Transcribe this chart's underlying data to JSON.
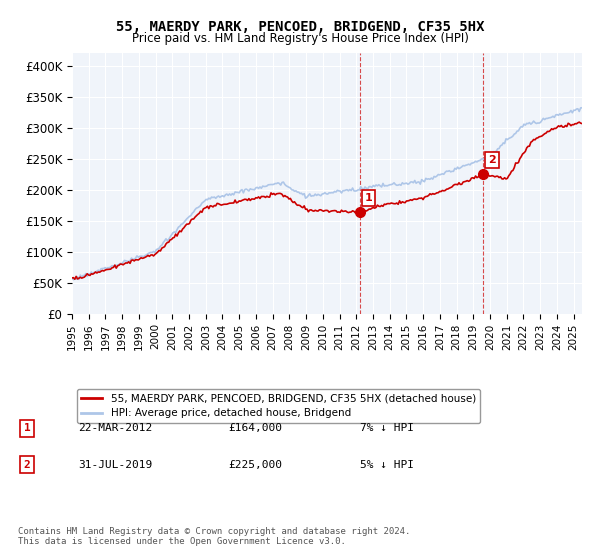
{
  "title": "55, MAERDY PARK, PENCOED, BRIDGEND, CF35 5HX",
  "subtitle": "Price paid vs. HM Land Registry's House Price Index (HPI)",
  "ylabel_ticks": [
    "£0",
    "£50K",
    "£100K",
    "£150K",
    "£200K",
    "£250K",
    "£300K",
    "£350K",
    "£400K"
  ],
  "ytick_values": [
    0,
    50000,
    100000,
    150000,
    200000,
    250000,
    300000,
    350000,
    400000
  ],
  "ylim": [
    0,
    420000
  ],
  "xlim_start": 1995.0,
  "xlim_end": 2025.5,
  "hpi_color": "#aec6e8",
  "price_color": "#cc0000",
  "sale1": {
    "date_num": 2012.22,
    "price": 164000,
    "label": "1"
  },
  "sale2": {
    "date_num": 2019.58,
    "price": 225000,
    "label": "2"
  },
  "legend_line1": "55, MAERDY PARK, PENCOED, BRIDGEND, CF35 5HX (detached house)",
  "legend_line2": "HPI: Average price, detached house, Bridgend",
  "table_row1": [
    "1",
    "22-MAR-2012",
    "£164,000",
    "7% ↓ HPI"
  ],
  "table_row2": [
    "2",
    "31-JUL-2019",
    "£225,000",
    "5% ↓ HPI"
  ],
  "footer": "Contains HM Land Registry data © Crown copyright and database right 2024.\nThis data is licensed under the Open Government Licence v3.0.",
  "vline1_x": 2012.22,
  "vline2_x": 2019.58,
  "background_plot": "#f0f4fa",
  "background_fig": "#ffffff"
}
